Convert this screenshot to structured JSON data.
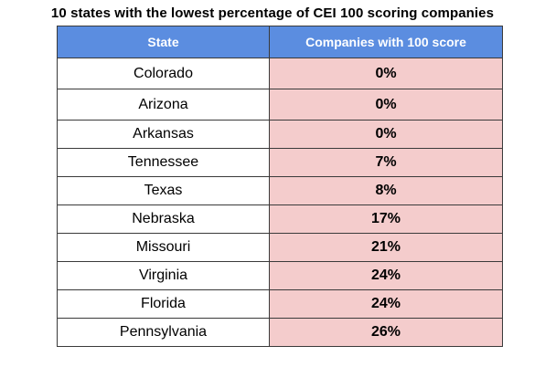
{
  "chart_data": {
    "type": "table",
    "title": "10 states with the lowest percentage of CEI 100 scoring companies",
    "columns": [
      "State",
      "Companies with 100 score"
    ],
    "header_color": "#5b8de0",
    "value_cell_color": "#f4cccc",
    "rows": [
      {
        "state": "Colorado",
        "value": "0%"
      },
      {
        "state": "Arizona",
        "value": "0%"
      },
      {
        "state": "Arkansas",
        "value": "0%"
      },
      {
        "state": "Tennessee",
        "value": "7%"
      },
      {
        "state": "Texas",
        "value": "8%"
      },
      {
        "state": "Nebraska",
        "value": "17%"
      },
      {
        "state": "Missouri",
        "value": "21%"
      },
      {
        "state": "Virginia",
        "value": "24%"
      },
      {
        "state": "Florida",
        "value": "24%"
      },
      {
        "state": "Pennsylvania",
        "value": "26%"
      }
    ]
  }
}
